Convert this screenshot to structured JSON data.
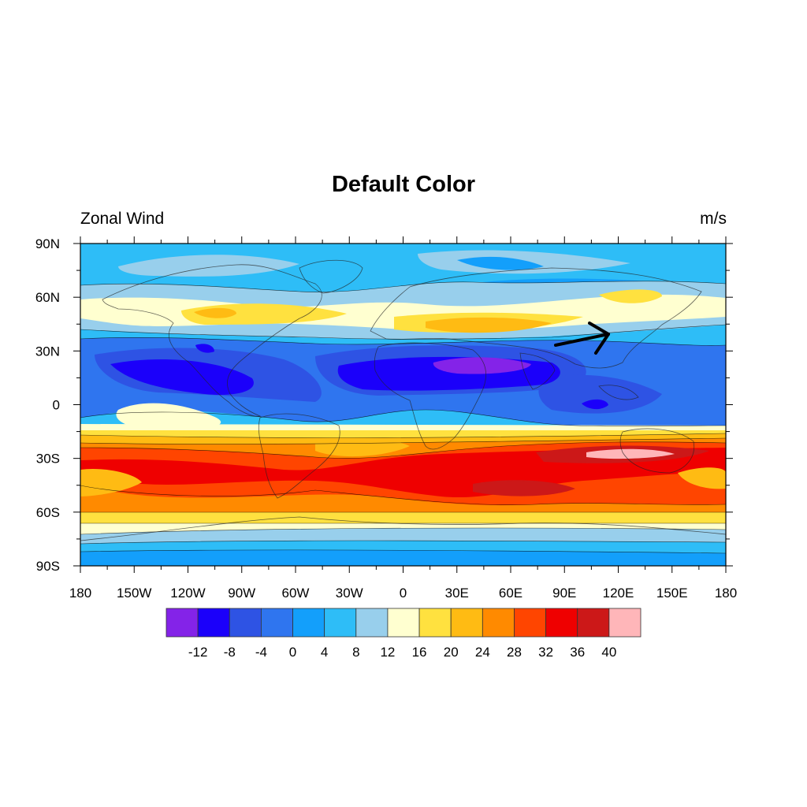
{
  "title": "Default Color",
  "left_string": "Zonal Wind",
  "right_string": "m/s",
  "map": {
    "projection": "cylindrical-equidistant",
    "lon_range": [
      -180,
      180
    ],
    "lat_range": [
      -90,
      90
    ],
    "lat_tick_labels": [
      "90N",
      "60N",
      "30N",
      "0",
      "30S",
      "60S",
      "90S"
    ],
    "lon_tick_labels": [
      "180",
      "150W",
      "120W",
      "90W",
      "60W",
      "30W",
      "0",
      "30E",
      "60E",
      "90E",
      "120E",
      "150E",
      "180"
    ],
    "fill_type": "filled-contours",
    "annotation": "arrow"
  },
  "colorbar": {
    "orientation": "horizontal",
    "labels": [
      "-12",
      "-8",
      "-4",
      "0",
      "4",
      "8",
      "12",
      "16",
      "20",
      "24",
      "28",
      "32",
      "36",
      "40"
    ],
    "colors": [
      "#8423e8",
      "#1b00fa",
      "#2e53e4",
      "#2f75ef",
      "#139ffb",
      "#2ebdf7",
      "#98cfec",
      "#ffffd0",
      "#ffe13f",
      "#ffbb13",
      "#ff8a00",
      "#ff4500",
      "#ef0000",
      "#cc1818",
      "#ffb6b9"
    ]
  }
}
